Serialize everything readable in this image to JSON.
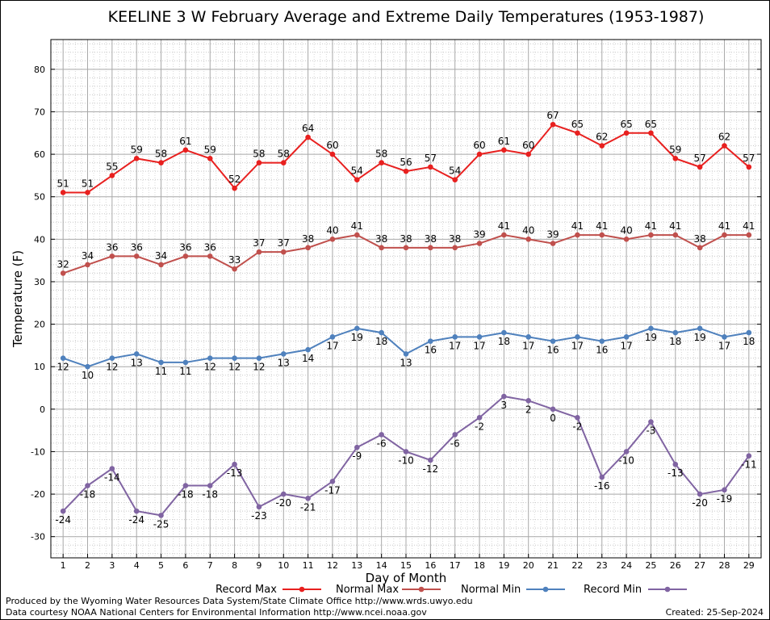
{
  "chart_data": {
    "type": "line",
    "title": "KEELINE 3 W February Average and Extreme Daily Temperatures (1953-1987)",
    "xlabel": "Day of Month",
    "ylabel": "Temperature (F)",
    "x": [
      1,
      2,
      3,
      4,
      5,
      6,
      7,
      8,
      9,
      10,
      11,
      12,
      13,
      14,
      15,
      16,
      17,
      18,
      19,
      20,
      21,
      22,
      23,
      24,
      25,
      26,
      27,
      28,
      29
    ],
    "xlim": [
      0.5,
      29.5
    ],
    "ylim": [
      -35,
      87
    ],
    "yticks": [
      -30,
      -20,
      -10,
      0,
      10,
      20,
      30,
      40,
      50,
      60,
      70,
      80
    ],
    "grid": true,
    "legend_position": "bottom",
    "series": [
      {
        "name": "Record Max",
        "color": "#e8201f",
        "label_pos": "above",
        "values": [
          51,
          51,
          55,
          59,
          58,
          61,
          59,
          52,
          58,
          58,
          64,
          60,
          54,
          58,
          56,
          57,
          54,
          60,
          61,
          60,
          67,
          65,
          62,
          65,
          65,
          59,
          57,
          62,
          57
        ]
      },
      {
        "name": "Normal Max",
        "color": "#c0504d",
        "label_pos": "above",
        "values": [
          32,
          34,
          36,
          36,
          34,
          36,
          36,
          33,
          37,
          37,
          38,
          40,
          41,
          38,
          38,
          38,
          38,
          39,
          41,
          40,
          39,
          41,
          41,
          40,
          41,
          41,
          38,
          41,
          41
        ]
      },
      {
        "name": "Normal Min",
        "color": "#4f81bd",
        "label_pos": "below",
        "values": [
          12,
          10,
          12,
          13,
          11,
          11,
          12,
          12,
          12,
          13,
          14,
          17,
          19,
          18,
          13,
          16,
          17,
          17,
          18,
          17,
          16,
          17,
          16,
          17,
          19,
          18,
          19,
          17,
          18
        ]
      },
      {
        "name": "Record Min",
        "color": "#8064a2",
        "label_pos": "below",
        "values": [
          -24,
          -18,
          -14,
          -24,
          -25,
          -18,
          -18,
          -13,
          -23,
          -20,
          -21,
          -17,
          -9,
          -6,
          -10,
          -12,
          -6,
          -2,
          3,
          2,
          0,
          -2,
          -16,
          -10,
          -3,
          -13,
          -20,
          -19,
          -11
        ]
      }
    ]
  },
  "footer": {
    "produced_by": "Produced by the Wyoming Water Resources Data System/State Climate Office http://www.wrds.uwyo.edu",
    "courtesy": "Data courtesy NOAA National Centers for Environmental Information http://www.ncei.noaa.gov",
    "created": "Created: 25-Sep-2024"
  }
}
